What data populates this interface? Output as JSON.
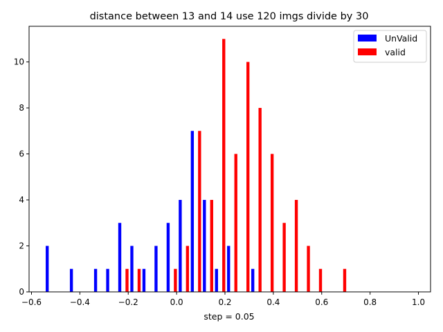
{
  "chart_data": {
    "type": "bar",
    "title": "distance between 13 and 14 use 120 imgs divide by 30",
    "xlabel": "step = 0.05",
    "ylabel": "",
    "xlim": [
      -0.61,
      1.05
    ],
    "ylim": [
      0,
      11.55
    ],
    "x_ticks": [
      -0.6,
      -0.4,
      -0.2,
      0.0,
      0.2,
      0.4,
      0.6,
      0.8,
      1.0
    ],
    "x_tick_labels": [
      "−0.6",
      "−0.4",
      "−0.2",
      "0.0",
      "0.2",
      "0.4",
      "0.6",
      "0.8",
      "1.0"
    ],
    "y_ticks": [
      0,
      2,
      4,
      6,
      8,
      10
    ],
    "y_tick_labels": [
      "0",
      "2",
      "4",
      "6",
      "8",
      "10"
    ],
    "bar_width": 0.0125,
    "legend_position": "top-right",
    "series": [
      {
        "name": "UnValid",
        "color": "#0000ff",
        "x": [
          -0.535,
          -0.435,
          -0.335,
          -0.285,
          -0.235,
          -0.185,
          -0.135,
          -0.085,
          -0.035,
          0.015,
          0.065,
          0.115,
          0.165,
          0.215,
          0.315
        ],
        "values": [
          2,
          1,
          1,
          1,
          3,
          2,
          1,
          2,
          3,
          4,
          7,
          4,
          1,
          2,
          1
        ]
      },
      {
        "name": "valid",
        "color": "#ff0000",
        "x": [
          -0.205,
          -0.155,
          -0.005,
          0.045,
          0.095,
          0.145,
          0.195,
          0.245,
          0.295,
          0.345,
          0.395,
          0.445,
          0.495,
          0.545,
          0.595,
          0.695
        ],
        "values": [
          1,
          1,
          1,
          2,
          7,
          4,
          11,
          6,
          10,
          8,
          6,
          3,
          4,
          2,
          1,
          1
        ]
      }
    ]
  }
}
